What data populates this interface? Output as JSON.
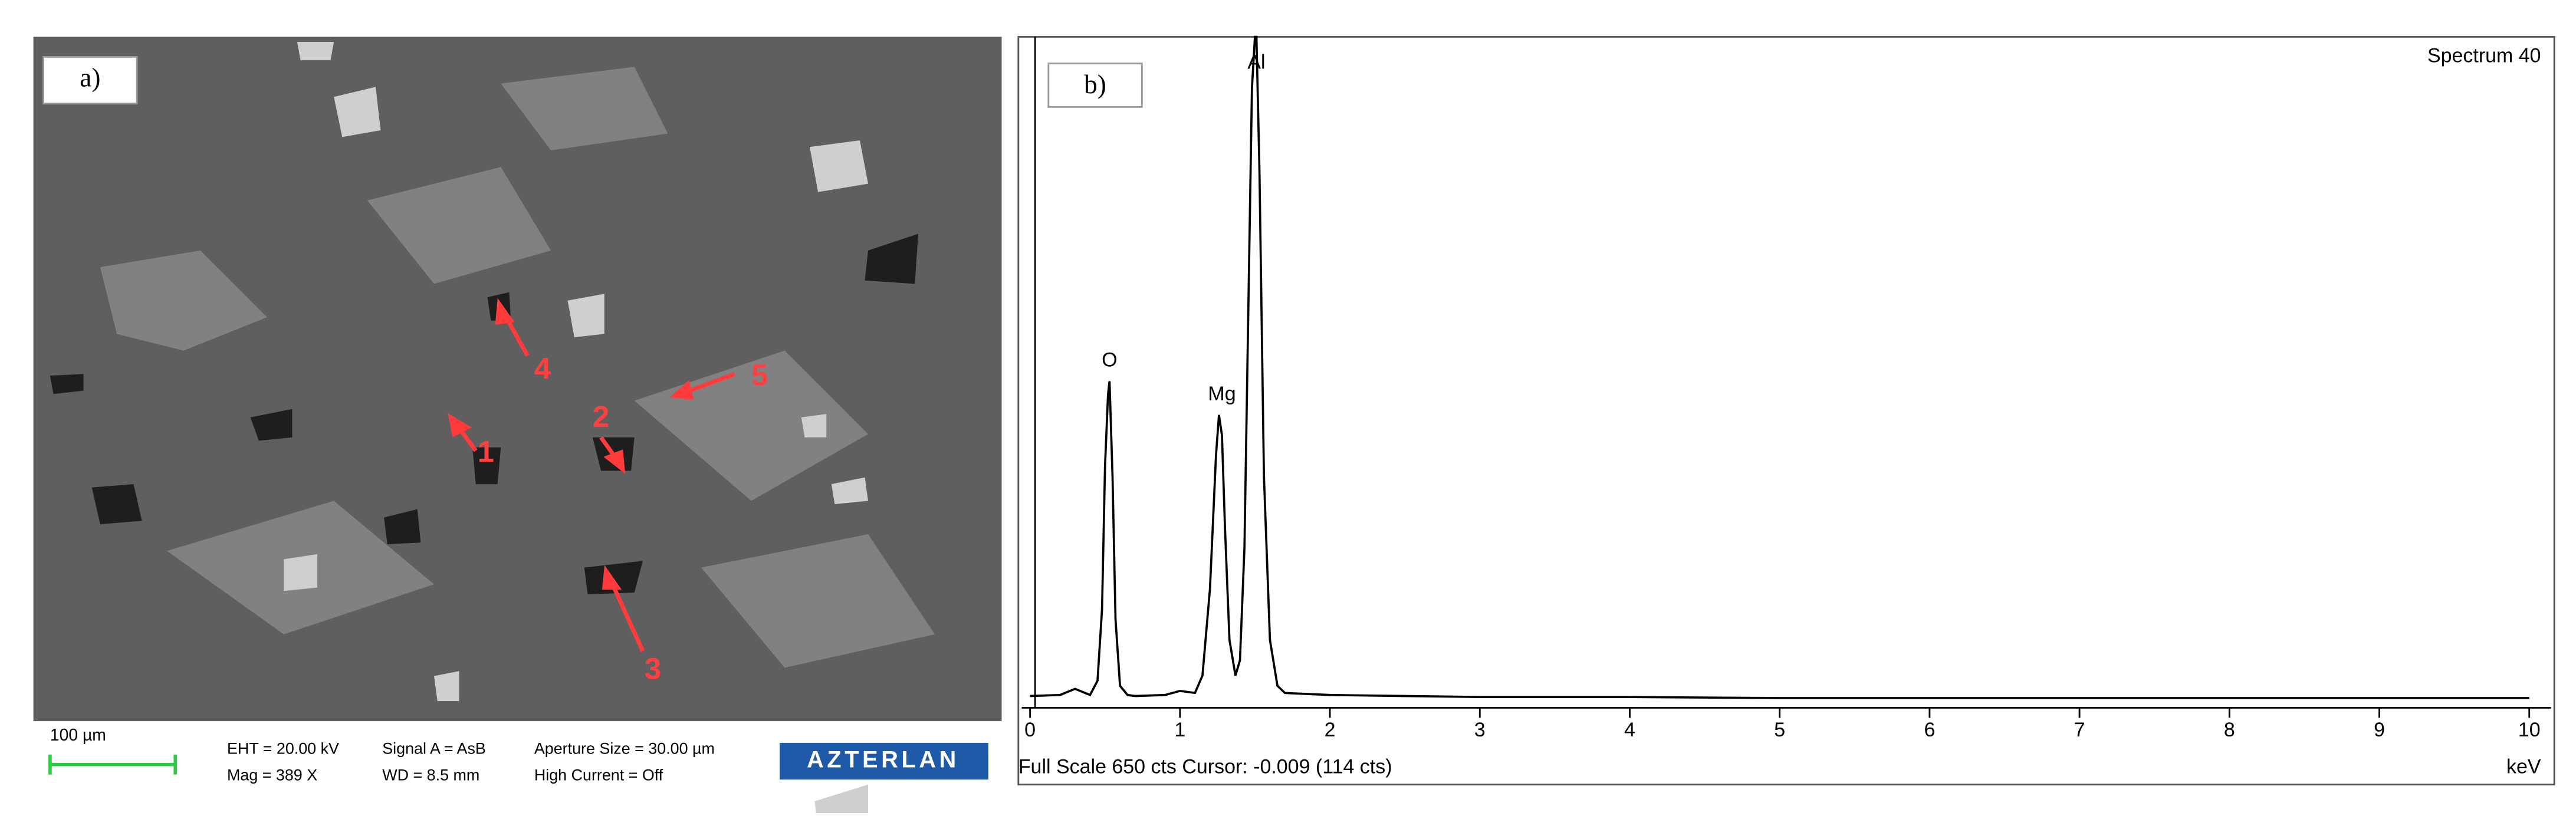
{
  "panel_a": {
    "label": "a)",
    "scale_bar": "100 µm",
    "info": [
      "EHT = 20.00 kV",
      "Mag =   389 X",
      "Signal A = AsB",
      "WD =  8.5 mm",
      "Aperture Size = 30.00 µm",
      "High Current = Off"
    ],
    "logo": "AZTERLAN",
    "markers": [
      "1",
      "2",
      "3",
      "4",
      "5"
    ]
  },
  "chart_data": {
    "type": "line",
    "panel_label": "b)",
    "title": "Spectrum 40",
    "footer": "Full Scale 650 cts Cursor: -0.009  (114 cts)",
    "x_label": "keV",
    "color": "#000000",
    "x": [
      0,
      0.2,
      0.3,
      0.4,
      0.45,
      0.48,
      0.5,
      0.52,
      0.53,
      0.55,
      0.57,
      0.6,
      0.65,
      0.7,
      0.9,
      1.0,
      1.1,
      1.15,
      1.2,
      1.24,
      1.26,
      1.28,
      1.3,
      1.33,
      1.37,
      1.4,
      1.43,
      1.46,
      1.48,
      1.5,
      1.51,
      1.53,
      1.56,
      1.6,
      1.65,
      1.7,
      2.0,
      2.5,
      3.0,
      4.0,
      5.0,
      6.0,
      7.0,
      8.0,
      9.0,
      10.0
    ],
    "values": [
      5,
      6,
      12,
      6,
      20,
      90,
      230,
      300,
      313,
      220,
      80,
      15,
      6,
      5,
      6,
      10,
      8,
      25,
      110,
      240,
      280,
      260,
      170,
      60,
      25,
      40,
      150,
      420,
      600,
      650,
      650,
      520,
      220,
      60,
      15,
      8,
      6,
      5,
      4,
      4,
      3,
      3,
      3,
      3,
      3,
      3
    ],
    "annotations": [
      {
        "text": "O",
        "x": 0.53,
        "y": 313
      },
      {
        "text": "Mg",
        "x": 1.28,
        "y": 280
      },
      {
        "text": "Al",
        "x": 1.51,
        "y": 650
      }
    ],
    "xlim": [
      0,
      10
    ],
    "ylim": [
      0,
      650
    ],
    "xticks": [
      0,
      1,
      2,
      3,
      4,
      5,
      6,
      7,
      8,
      9,
      10
    ]
  }
}
